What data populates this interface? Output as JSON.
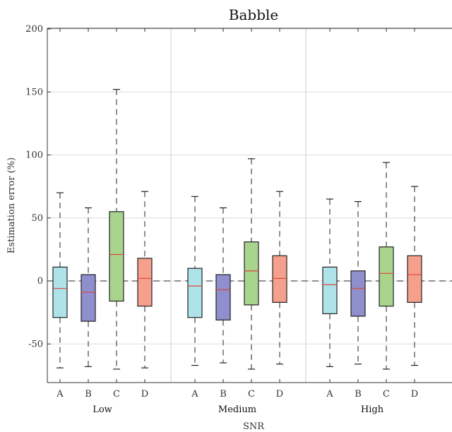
{
  "chart_data": {
    "type": "box",
    "title": "Babble",
    "xlabel": "SNR",
    "ylabel": "Estimation error (%)",
    "ylim": [
      -82,
      200
    ],
    "yticks": [
      200,
      150,
      100,
      50,
      0,
      -50
    ],
    "ytick_labels": [
      "200",
      "150",
      "100",
      "50",
      "0",
      "-50"
    ],
    "grid": true,
    "reference_line": 0,
    "groups": [
      "Low",
      "Medium",
      "High"
    ],
    "methods": [
      "A",
      "B",
      "C",
      "D"
    ],
    "colors": {
      "A": "#aee3ea",
      "B": "#8e8fcc",
      "C": "#a9d48e",
      "D": "#f5a08c",
      "median": "#e0443a"
    },
    "boxes": [
      {
        "group": "Low",
        "method": "A",
        "min": -69,
        "q1": -29,
        "median": -6,
        "q3": 11,
        "max": 70
      },
      {
        "group": "Low",
        "method": "B",
        "min": -68,
        "q1": -32,
        "median": -9,
        "q3": 5,
        "max": 58
      },
      {
        "group": "Low",
        "method": "C",
        "min": -70,
        "q1": -16,
        "median": 21,
        "q3": 55,
        "max": 152
      },
      {
        "group": "Low",
        "method": "D",
        "min": -69,
        "q1": -20,
        "median": 2,
        "q3": 18,
        "max": 71
      },
      {
        "group": "Medium",
        "method": "A",
        "min": -67,
        "q1": -29,
        "median": -4,
        "q3": 10,
        "max": 67
      },
      {
        "group": "Medium",
        "method": "B",
        "min": -65,
        "q1": -31,
        "median": -7,
        "q3": 5,
        "max": 58
      },
      {
        "group": "Medium",
        "method": "C",
        "min": -70,
        "q1": -19,
        "median": 8,
        "q3": 31,
        "max": 97
      },
      {
        "group": "Medium",
        "method": "D",
        "min": -66,
        "q1": -17,
        "median": 2,
        "q3": 20,
        "max": 71
      },
      {
        "group": "High",
        "method": "A",
        "min": -68,
        "q1": -26,
        "median": -3,
        "q3": 11,
        "max": 65
      },
      {
        "group": "High",
        "method": "B",
        "min": -66,
        "q1": -28,
        "median": -6,
        "q3": 8,
        "max": 63
      },
      {
        "group": "High",
        "method": "C",
        "min": -70,
        "q1": -20,
        "median": 6,
        "q3": 27,
        "max": 94
      },
      {
        "group": "High",
        "method": "D",
        "min": -67,
        "q1": -17,
        "median": 5,
        "q3": 20,
        "max": 75
      }
    ]
  }
}
